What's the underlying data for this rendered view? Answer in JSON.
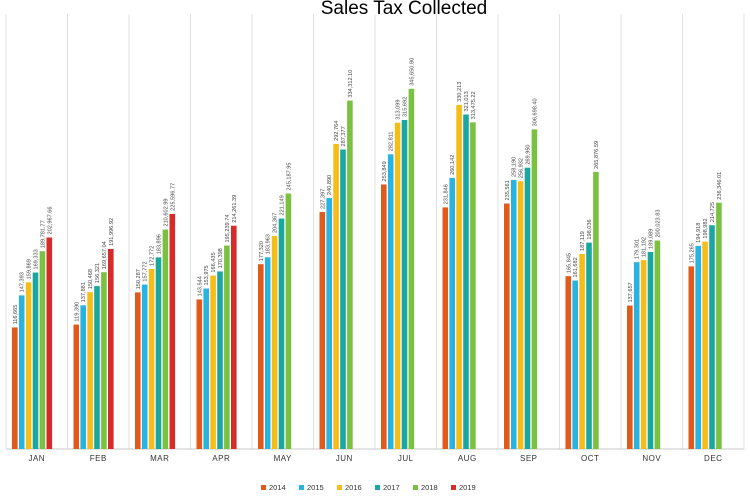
{
  "chart_data": {
    "type": "bar",
    "title": "Sales Tax Collected",
    "xlabel": "",
    "ylabel": "",
    "ylim": [
      0,
      380000
    ],
    "grid": true,
    "legend_position": "bottom",
    "categories": [
      "JAN",
      "FEB",
      "MAR",
      "APR",
      "MAY",
      "JUN",
      "JUL",
      "AUG",
      "SEP",
      "OCT",
      "NOV",
      "DEC"
    ],
    "series": [
      {
        "name": "2014",
        "color": "#e05a1c",
        "values": [
          116665,
          119390,
          150287,
          143544,
          177320,
          227397,
          253849,
          231846,
          235561,
          165845,
          137657,
          175265
        ],
        "labels": [
          "116,665",
          "119,390",
          "150,287",
          "143,544",
          "177,320",
          "227,397",
          "253,849",
          "231,846",
          "235,561",
          "165,845",
          "137,657",
          "175,265"
        ]
      },
      {
        "name": "2015",
        "color": "#29b3e0",
        "values": [
          147393,
          137881,
          157772,
          153975,
          183963,
          240890,
          282811,
          260142,
          258190,
          161682,
          179301,
          194918
        ],
        "labels": [
          "147,393",
          "137,881",
          "157,772",
          "153,975",
          "183,963",
          "240,890",
          "282,811",
          "260,142",
          "258,190",
          "161,682",
          "179,301",
          "194,918"
        ]
      },
      {
        "name": "2016",
        "color": "#f4bd18",
        "values": [
          159869,
          150468,
          172772,
          166435,
          204367,
          292764,
          313099,
          330213,
          256932,
          187119,
          181192,
          198982
        ],
        "labels": [
          "159,869",
          "150,468",
          "172,772",
          "166,435",
          "204,367",
          "292,764",
          "313,099",
          "330,213",
          "256,932",
          "187,119",
          "181,192",
          "198,982"
        ]
      },
      {
        "name": "2017",
        "color": "#1aa7a0",
        "values": [
          169333,
          156321,
          183896,
          170398,
          221149,
          287377,
          315692,
          321013,
          269950,
          198036,
          189089,
          214725
        ],
        "labels": [
          "169,333",
          "156,321",
          "183,896",
          "170,398",
          "221,149",
          "287,377",
          "315,692",
          "321,013",
          "269,950",
          "198,036",
          "189,089",
          "214,725"
        ]
      },
      {
        "name": "2018",
        "color": "#7ac142",
        "values": [
          189781.77,
          169657.04,
          210602.99,
          195239.74,
          245187.95,
          334312.1,
          345650.8,
          313475.22,
          306698.4,
          265876.59,
          200023.83,
          236346.01
        ],
        "labels": [
          "189,781.77",
          "169,657.04",
          "210,602.99",
          "195,239.74",
          "245,187.95",
          "334,312.10",
          "345,650.80",
          "313,475.22",
          "306,698.40",
          "265,876.59",
          "200,023.83",
          "236,346.01"
        ]
      },
      {
        "name": "2019",
        "color": "#d62b2b",
        "values": [
          202967.66,
          191996.92,
          225596.77,
          214261.39,
          null,
          null,
          null,
          null,
          null,
          null,
          null,
          null
        ],
        "labels": [
          "202,967.66",
          "191,996.92",
          "225,596.77",
          "214,261.39",
          "",
          "",
          "",
          "",
          "",
          "",
          "",
          ""
        ]
      }
    ]
  }
}
